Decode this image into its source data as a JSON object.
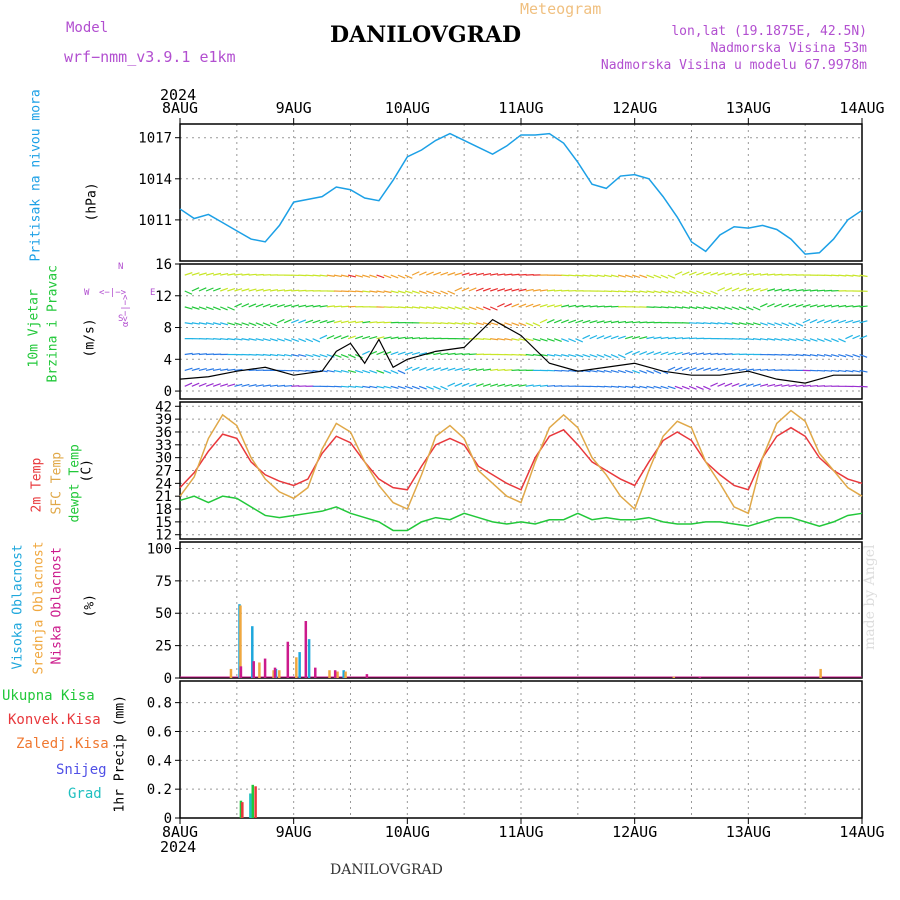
{
  "header": {
    "model_label": "Model",
    "model_name": "wrf−nmm_v3.9.1 e1km",
    "meteogram_label": "Meteogram",
    "title": "DANILOVGRAD",
    "lonlat": "lon,lat (19.1875E, 42.5N)",
    "altitude": "Nadmorska Visina 53m",
    "model_altitude": "Nadmorska Visina u modelu 67.9978m"
  },
  "footer": {
    "title": "DANILOVGRAD",
    "credit": "made by Angel"
  },
  "time_axis": {
    "year": "2024",
    "labels": [
      "8AUG",
      "9AUG",
      "10AUG",
      "11AUG",
      "12AUG",
      "13AUG",
      "14AUG"
    ]
  },
  "panels": {
    "pressure": {
      "label": "Pritisak na nivou mora",
      "unit": "(hPa)"
    },
    "wind": {
      "label1": "10m Vjetar",
      "label2": "Brzina i Pravac",
      "unit": "(m/s)",
      "compass_n": "N",
      "compass_s": "S",
      "compass_e": "E",
      "compass_w": "W",
      "compass_top": "<−|−>",
      "compass_side": "α<−|−>"
    },
    "temp": {
      "label_2m": "2m Temp",
      "label_sfc": "SFC Temp",
      "label_dew": "dewpt Temp",
      "unit": "(C)"
    },
    "cloud": {
      "label_high": "Visoka Oblacnost",
      "label_mid": "Srednja Oblacnost",
      "label_low": "Niska Oblacnost",
      "unit": "(%)"
    },
    "precip": {
      "label": "1hr Precip (mm)",
      "legend": [
        "Ukupna Kisa",
        "Konvek.Kisa",
        "Zaledj.Kisa",
        "Snijeg",
        "Grad"
      ]
    }
  },
  "colors": {
    "pressure": "#1ca0e6",
    "temp2m": "#e8383c",
    "sfc": "#e0a848",
    "dew": "#22c83a",
    "cloud_high": "#1ea7dc",
    "cloud_mid": "#f0a840",
    "cloud_low": "#cc1a8c",
    "total_rain": "#22c83a",
    "conv_rain": "#e8383c",
    "frz_rain": "#f07830",
    "snow": "#5050e6",
    "hail": "#20c0c0",
    "wind_text": "#22c83a",
    "purple": "#b24fd0",
    "grid": "#999999"
  },
  "chart_data": [
    {
      "type": "line",
      "name": "pressure",
      "x_start": "2024-08-08T00:00",
      "x_end": "2024-08-14T00:00",
      "x_hours": [
        0,
        3,
        6,
        9,
        12,
        15,
        18,
        21,
        24,
        27,
        30,
        33,
        36,
        39,
        42,
        45,
        48,
        51,
        54,
        57,
        60,
        63,
        66,
        69,
        72,
        75,
        78,
        81,
        84,
        87,
        90,
        93,
        96,
        99,
        102,
        105,
        108,
        111,
        114,
        117,
        120,
        123,
        126,
        129,
        132,
        135,
        138,
        141,
        144
      ],
      "y": [
        1011.8,
        1011.1,
        1011.4,
        1010.8,
        1010.2,
        1009.6,
        1009.4,
        1010.6,
        1012.3,
        1012.5,
        1012.7,
        1013.4,
        1013.2,
        1012.6,
        1012.4,
        1013.9,
        1015.6,
        1016.1,
        1016.8,
        1017.3,
        1016.8,
        1016.3,
        1015.8,
        1016.4,
        1017.2,
        1017.2,
        1017.3,
        1016.6,
        1015.2,
        1013.6,
        1013.3,
        1014.2,
        1014.3,
        1014.0,
        1012.7,
        1011.2,
        1009.4,
        1008.7,
        1009.9,
        1010.5,
        1010.4,
        1010.6,
        1010.3,
        1009.6,
        1008.5,
        1008.6,
        1009.6,
        1011.0,
        1011.7
      ],
      "ylim": [
        1008,
        1018
      ],
      "yticks": [
        1011,
        1014,
        1017
      ]
    },
    {
      "type": "line",
      "name": "wind_speed",
      "x_hours": [
        0,
        6,
        12,
        18,
        24,
        30,
        33,
        36,
        39,
        42,
        45,
        48,
        54,
        60,
        66,
        72,
        78,
        84,
        90,
        96,
        102,
        108,
        114,
        120,
        126,
        132,
        138,
        144
      ],
      "y": [
        1.5,
        1.8,
        2.5,
        3.0,
        2.0,
        2.5,
        5.0,
        6.0,
        3.5,
        6.5,
        3.0,
        4.0,
        5.0,
        5.5,
        9.0,
        7.0,
        3.5,
        2.5,
        3.0,
        3.5,
        2.5,
        2.0,
        2.0,
        2.5,
        1.5,
        1.0,
        2.0,
        2.0
      ],
      "ylim": [
        -1,
        16
      ],
      "yticks": [
        0,
        4,
        8,
        12,
        16
      ]
    },
    {
      "type": "line",
      "name": "temperature",
      "x_hours": [
        0,
        3,
        6,
        9,
        12,
        15,
        18,
        21,
        24,
        27,
        30,
        33,
        36,
        39,
        42,
        45,
        48,
        51,
        54,
        57,
        60,
        63,
        66,
        69,
        72,
        75,
        78,
        81,
        84,
        87,
        90,
        93,
        96,
        99,
        102,
        105,
        108,
        111,
        114,
        117,
        120,
        123,
        126,
        129,
        132,
        135,
        138,
        141,
        144
      ],
      "series": [
        {
          "name": "2m Temp",
          "values": [
            23,
            26.5,
            31.5,
            35.5,
            34.5,
            29,
            26,
            24.5,
            23.5,
            25,
            31,
            35,
            33.5,
            29,
            25,
            23,
            22.5,
            28,
            33,
            34.5,
            33,
            28,
            26,
            24,
            22.5,
            30,
            35,
            36.5,
            33,
            29,
            27,
            25,
            23.5,
            29,
            34,
            36,
            34,
            29,
            26,
            23.5,
            22.5,
            30,
            35,
            37,
            35,
            30,
            27,
            25,
            24
          ]
        },
        {
          "name": "SFC Temp",
          "values": [
            21,
            25.5,
            34.5,
            40,
            37.5,
            30,
            25,
            22,
            20.5,
            23,
            32,
            38,
            36,
            29,
            23.5,
            19.5,
            18,
            26,
            35,
            37.5,
            34.5,
            27,
            24,
            21,
            19.5,
            29,
            37,
            40,
            37,
            30,
            26,
            21,
            18,
            27,
            35,
            38.5,
            37,
            29,
            24,
            18.5,
            17,
            30,
            38,
            41,
            38.5,
            31,
            27,
            23,
            21
          ]
        },
        {
          "name": "dewpt Temp",
          "values": [
            20,
            21,
            19.5,
            21,
            20.5,
            18.5,
            16.5,
            16,
            16.5,
            17,
            17.5,
            18.5,
            17,
            16,
            15,
            13,
            13,
            15,
            16,
            15.5,
            17,
            16,
            15,
            14.5,
            15,
            14.5,
            15.5,
            15.5,
            17,
            15.5,
            16,
            15.5,
            15.5,
            16,
            15,
            14.5,
            14.5,
            15,
            15,
            14.5,
            14,
            15,
            16,
            16,
            15,
            14,
            15,
            16.5,
            17
          ]
        }
      ],
      "ylim": [
        11,
        43
      ],
      "yticks": [
        12,
        15,
        18,
        21,
        24,
        27,
        30,
        33,
        36,
        39,
        42
      ]
    },
    {
      "type": "bar",
      "name": "cloud_cover",
      "series": [
        {
          "name": "Visoka Oblacnost",
          "x_hours": [
            12.3,
            15,
            20,
            25,
            27,
            34.3
          ],
          "values": [
            57,
            40,
            7,
            20,
            30,
            6
          ]
        },
        {
          "name": "Srednja Oblacnost",
          "x_hours": [
            10.5,
            12.5,
            16.5,
            19.5,
            20.7,
            24.3,
            31.3,
            33,
            34.7,
            104,
            135
          ],
          "values": [
            7,
            56,
            12,
            6,
            6,
            16,
            6,
            5,
            5,
            1,
            7
          ]
        },
        {
          "name": "Niska Oblacnost",
          "x_hours": [
            12.6,
            15.3,
            17.7,
            19.8,
            22.5,
            26.3,
            28.3,
            32.5,
            39.2,
            109.5
          ],
          "values": [
            9,
            13,
            15,
            8,
            28,
            44,
            8,
            6,
            3,
            1
          ]
        }
      ],
      "ylim": [
        0,
        105
      ],
      "yticks": [
        0,
        25,
        50,
        75,
        100
      ]
    },
    {
      "type": "bar",
      "name": "precipitation",
      "series": [
        {
          "name": "Ukupna Kisa",
          "x_hours": [
            12.6,
            15.1
          ],
          "values": [
            0.12,
            0.23
          ]
        },
        {
          "name": "Konvek.Kisa",
          "x_hours": [
            12.9,
            15.7
          ],
          "values": [
            0.11,
            0.22
          ]
        },
        {
          "name": "Grad",
          "x_hours": [
            14.6
          ],
          "values": [
            0.17
          ]
        }
      ],
      "ylim": [
        0,
        0.95
      ],
      "yticks": [
        0,
        0.2,
        0.4,
        0.6,
        0.8
      ],
      "ytick_labels": [
        "0",
        "0.2",
        "0.4",
        "0.6",
        "0.8"
      ]
    }
  ]
}
